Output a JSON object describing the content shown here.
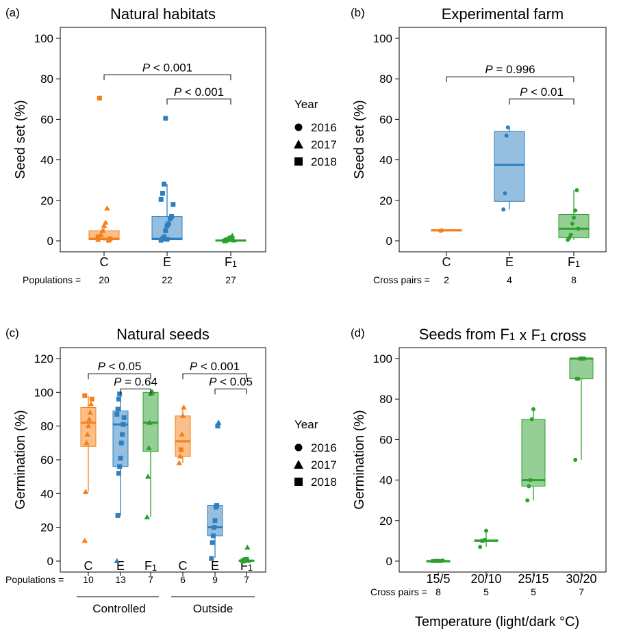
{
  "colors": {
    "C": "#F57F16",
    "E": "#2E7FBF",
    "F1": "#2CA02C"
  },
  "legend": {
    "title": "Year",
    "items": [
      "2016",
      "2017",
      "2018"
    ]
  },
  "chart_data": [
    {
      "panel": "(a)",
      "title": "Natural habitats",
      "type": "box",
      "ylabel": "Seed set (%)",
      "ylim": [
        0,
        100
      ],
      "yticks": [
        0,
        20,
        40,
        60,
        80,
        100
      ],
      "categories": [
        "C",
        "E",
        "F1"
      ],
      "count_label": "Populations =",
      "counts": [
        "20",
        "22",
        "27"
      ],
      "boxes": [
        {
          "q1": 0.5,
          "median": 1,
          "q3": 5,
          "wlo": 0,
          "whi": 8
        },
        {
          "q1": 0.5,
          "median": 1,
          "q3": 12,
          "wlo": 0,
          "whi": 28
        },
        {
          "q1": 0,
          "median": 0.2,
          "q3": 0.5,
          "wlo": 0,
          "whi": 1
        }
      ],
      "points": [
        [
          [
            0,
            0.5,
            "t"
          ],
          [
            0,
            1.5,
            "t"
          ],
          [
            0,
            3,
            "t"
          ],
          [
            0,
            5,
            "t"
          ],
          [
            0,
            7.5,
            "t"
          ],
          [
            0,
            9,
            "t"
          ],
          [
            0,
            16,
            "t"
          ],
          [
            0,
            0.3,
            "s"
          ],
          [
            0,
            1,
            "s"
          ],
          [
            0,
            2,
            "s"
          ],
          [
            0,
            70.5,
            "s"
          ]
        ],
        [
          [
            1,
            0.3,
            "s"
          ],
          [
            1,
            1,
            "s"
          ],
          [
            1,
            2,
            "s"
          ],
          [
            1,
            5,
            "s"
          ],
          [
            1,
            7.5,
            "s"
          ],
          [
            1,
            8.5,
            "s"
          ],
          [
            1,
            11,
            "s"
          ],
          [
            1,
            12,
            "s"
          ],
          [
            1,
            18,
            "s"
          ],
          [
            1,
            20.5,
            "s"
          ],
          [
            1,
            23.5,
            "s"
          ],
          [
            1,
            28,
            "s"
          ],
          [
            1,
            60.5,
            "s"
          ],
          [
            1,
            0.8,
            "s"
          ]
        ],
        [
          [
            2,
            0,
            "s"
          ],
          [
            2,
            0.3,
            "s"
          ],
          [
            2,
            0.6,
            "s"
          ],
          [
            2,
            1,
            "s"
          ],
          [
            2,
            1.5,
            "s"
          ],
          [
            2,
            2.5,
            "t"
          ],
          [
            2,
            0.2,
            "t"
          ]
        ]
      ],
      "brackets": [
        {
          "from": 0,
          "to": 2,
          "y": 82,
          "label": "P < 0.001"
        },
        {
          "from": 1,
          "to": 2,
          "y": 70,
          "label": "P  < 0.001"
        }
      ]
    },
    {
      "panel": "(b)",
      "title": "Experimental farm",
      "type": "box",
      "ylabel": "Seed set (%)",
      "ylim": [
        0,
        100
      ],
      "yticks": [
        0,
        20,
        40,
        60,
        80,
        100
      ],
      "categories": [
        "C",
        "E",
        "F1"
      ],
      "count_label": "Cross pairs =",
      "counts": [
        "2",
        "4",
        "8"
      ],
      "boxes": [
        {
          "q1": 5,
          "median": 5.2,
          "q3": 5.5,
          "wlo": 5,
          "whi": 5.5
        },
        {
          "q1": 19.5,
          "median": 37.5,
          "q3": 54,
          "wlo": 15.5,
          "whi": 56
        },
        {
          "q1": 1.5,
          "median": 6,
          "q3": 13,
          "wlo": 0.5,
          "whi": 25
        }
      ],
      "points": [
        [
          [
            0,
            5,
            "c"
          ],
          [
            0,
            5.2,
            "c"
          ]
        ],
        [
          [
            1,
            15.5,
            "c"
          ],
          [
            1,
            23.5,
            "c"
          ],
          [
            1,
            52,
            "c"
          ],
          [
            1,
            56,
            "c"
          ]
        ],
        [
          [
            2,
            0.5,
            "c"
          ],
          [
            2,
            1.5,
            "c"
          ],
          [
            2,
            3,
            "c"
          ],
          [
            2,
            8.5,
            "c"
          ],
          [
            2,
            11.5,
            "c"
          ],
          [
            2,
            15,
            "c"
          ],
          [
            2,
            25,
            "c"
          ],
          [
            2,
            6,
            "c"
          ]
        ]
      ],
      "brackets": [
        {
          "from": 0,
          "to": 2,
          "y": 81,
          "label": "P  = 0.996"
        },
        {
          "from": 1,
          "to": 2,
          "y": 70,
          "label": "P  < 0.01"
        }
      ]
    },
    {
      "panel": "(c)",
      "title": "Natural seeds",
      "type": "box",
      "ylabel": "Germination (%)",
      "ylim": [
        0,
        120
      ],
      "yticks": [
        0,
        20,
        40,
        60,
        80,
        100,
        120
      ],
      "categories": [
        "C",
        "E",
        "F1",
        "C",
        "E",
        "F1"
      ],
      "count_label": "Populations =",
      "counts": [
        "10",
        "13",
        "7",
        "6",
        "9",
        "7"
      ],
      "groups": [
        "Controlled",
        "Outside"
      ],
      "boxes": [
        {
          "q1": 68,
          "median": 82,
          "q3": 91,
          "wlo": 41,
          "whi": 98
        },
        {
          "q1": 56,
          "median": 81,
          "q3": 89,
          "wlo": 27,
          "whi": 100
        },
        {
          "q1": 65,
          "median": 82,
          "q3": 100,
          "wlo": 26,
          "whi": 100
        },
        {
          "q1": 62,
          "median": 71,
          "q3": 86,
          "wlo": 58,
          "whi": 91
        },
        {
          "q1": 15,
          "median": 20,
          "q3": 33,
          "wlo": 2,
          "whi": 34
        },
        {
          "q1": 0,
          "median": 0.3,
          "q3": 0.6,
          "wlo": 0,
          "whi": 1
        }
      ],
      "points": [
        [
          [
            0,
            12,
            "t"
          ],
          [
            0,
            41,
            "t"
          ],
          [
            0,
            70,
            "t"
          ],
          [
            0,
            75,
            "t"
          ],
          [
            0,
            80,
            "t"
          ],
          [
            0,
            84,
            "t"
          ],
          [
            0,
            88,
            "t"
          ],
          [
            0,
            93,
            "t"
          ],
          [
            0,
            96,
            "s"
          ],
          [
            0,
            98,
            "s"
          ]
        ],
        [
          [
            1,
            0,
            "t"
          ],
          [
            1,
            27,
            "s"
          ],
          [
            1,
            52,
            "s"
          ],
          [
            1,
            56,
            "s"
          ],
          [
            1,
            61,
            "s"
          ],
          [
            1,
            70,
            "s"
          ],
          [
            1,
            75,
            "s"
          ],
          [
            1,
            81,
            "s"
          ],
          [
            1,
            85,
            "s"
          ],
          [
            1,
            87,
            "s"
          ],
          [
            1,
            90,
            "s"
          ],
          [
            1,
            96,
            "s"
          ],
          [
            1,
            99,
            "s"
          ]
        ],
        [
          [
            2,
            26,
            "t"
          ],
          [
            2,
            50,
            "t"
          ],
          [
            2,
            67,
            "t"
          ],
          [
            2,
            82,
            "t"
          ],
          [
            2,
            99,
            "t"
          ],
          [
            2,
            100,
            "t"
          ],
          [
            2,
            100,
            "t"
          ]
        ],
        [
          [
            3,
            58,
            "t"
          ],
          [
            3,
            62,
            "t"
          ],
          [
            3,
            66,
            "s"
          ],
          [
            3,
            75,
            "t"
          ],
          [
            3,
            86,
            "t"
          ],
          [
            3,
            91,
            "t"
          ]
        ],
        [
          [
            4,
            1.5,
            "s"
          ],
          [
            4,
            11,
            "s"
          ],
          [
            4,
            15,
            "s"
          ],
          [
            4,
            20,
            "s"
          ],
          [
            4,
            24,
            "s"
          ],
          [
            4,
            32,
            "s"
          ],
          [
            4,
            33,
            "s"
          ],
          [
            4,
            80,
            "s"
          ],
          [
            4,
            82,
            "t"
          ]
        ],
        [
          [
            5,
            0,
            "s"
          ],
          [
            5,
            0.3,
            "s"
          ],
          [
            5,
            0.6,
            "s"
          ],
          [
            5,
            0.8,
            "s"
          ],
          [
            5,
            1,
            "s"
          ],
          [
            5,
            8,
            "t"
          ],
          [
            5,
            0.2,
            "t"
          ]
        ]
      ],
      "brackets": [
        {
          "from": 0,
          "to": 2,
          "y": 111,
          "label": "P < 0.05"
        },
        {
          "from": 1,
          "to": 2,
          "y": 102,
          "label": "P = 0.64"
        },
        {
          "from": 3,
          "to": 5,
          "y": 111,
          "label": "P < 0.001"
        },
        {
          "from": 4,
          "to": 5,
          "y": 102,
          "label": "P < 0.05"
        }
      ]
    },
    {
      "panel": "(d)",
      "title": "Seeds from F1 x F1 cross",
      "type": "box",
      "ylabel": "Germination (%)",
      "xlabel": "Temperature (light/dark °C)",
      "ylim": [
        0,
        100
      ],
      "yticks": [
        0,
        20,
        40,
        60,
        80,
        100
      ],
      "categories": [
        "15/5",
        "20/10",
        "25/15",
        "30/20"
      ],
      "count_label": "Cross pairs =",
      "counts": [
        "8",
        "5",
        "5",
        "7"
      ],
      "boxes": [
        {
          "q1": 0,
          "median": 0,
          "q3": 0.2,
          "wlo": 0,
          "whi": 0.5
        },
        {
          "q1": 10,
          "median": 10,
          "q3": 10.5,
          "wlo": 7,
          "whi": 15
        },
        {
          "q1": 37,
          "median": 40,
          "q3": 70,
          "wlo": 30,
          "whi": 75
        },
        {
          "q1": 90,
          "median": 100,
          "q3": 100,
          "wlo": 50,
          "whi": 100
        }
      ],
      "points": [
        [
          [
            0,
            0,
            "c"
          ],
          [
            0,
            0.1,
            "c"
          ],
          [
            0,
            0,
            "c"
          ],
          [
            0,
            0.2,
            "c"
          ],
          [
            0,
            0,
            "c"
          ],
          [
            0,
            0.1,
            "c"
          ],
          [
            0,
            0,
            "c"
          ],
          [
            0,
            0.3,
            "c"
          ]
        ],
        [
          [
            1,
            7,
            "c"
          ],
          [
            1,
            10,
            "c"
          ],
          [
            1,
            10,
            "c"
          ],
          [
            1,
            10.5,
            "c"
          ],
          [
            1,
            15,
            "c"
          ]
        ],
        [
          [
            2,
            30,
            "c"
          ],
          [
            2,
            37,
            "c"
          ],
          [
            2,
            40,
            "c"
          ],
          [
            2,
            70,
            "c"
          ],
          [
            2,
            75,
            "c"
          ]
        ],
        [
          [
            3,
            50,
            "c"
          ],
          [
            3,
            90,
            "c"
          ],
          [
            3,
            90,
            "c"
          ],
          [
            3,
            100,
            "c"
          ],
          [
            3,
            100,
            "c"
          ],
          [
            3,
            100,
            "c"
          ],
          [
            3,
            100,
            "c"
          ]
        ]
      ],
      "brackets": []
    }
  ]
}
